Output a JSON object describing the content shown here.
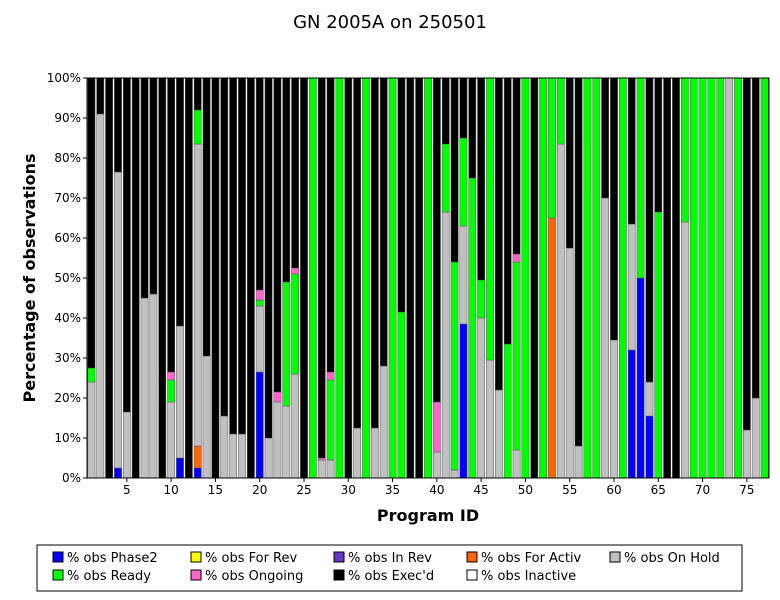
{
  "chart_data": {
    "type": "bar",
    "stacked": true,
    "title": "GN 2005A on 250501",
    "xlabel": "Program ID",
    "ylabel": "Percentage of observations",
    "ylim": [
      0,
      100
    ],
    "y_ticks": [
      "0%",
      "10%",
      "20%",
      "30%",
      "40%",
      "50%",
      "60%",
      "70%",
      "80%",
      "90%",
      "100%"
    ],
    "x_ticks": [
      "5",
      "10",
      "15",
      "20",
      "25",
      "30",
      "35",
      "40",
      "45",
      "50",
      "55",
      "60",
      "65",
      "70",
      "75"
    ],
    "legend_position": "bottom",
    "series_order": [
      "phase2",
      "for_rev",
      "in_rev",
      "for_activ",
      "on_hold",
      "ready",
      "ongoing",
      "execd",
      "inactive"
    ],
    "series_info": {
      "phase2": {
        "name": "% obs Phase2",
        "color": "#0000ff"
      },
      "for_rev": {
        "name": "% obs For Rev",
        "color": "#ffff00"
      },
      "in_rev": {
        "name": "% obs In Rev",
        "color": "#6633cc"
      },
      "for_activ": {
        "name": "% obs For Activ",
        "color": "#ff6600"
      },
      "on_hold": {
        "name": "% obs On Hold",
        "color": "#c0c0c0"
      },
      "ready": {
        "name": "% obs Ready",
        "color": "#00ff00"
      },
      "ongoing": {
        "name": "% obs Ongoing",
        "color": "#ff66cc"
      },
      "execd": {
        "name": "% obs Exec'd",
        "color": "#000000"
      },
      "inactive": {
        "name": "% obs Inactive",
        "color": "#ffffff"
      }
    },
    "programs": [
      {
        "id": 1,
        "on_hold": 24,
        "ready": 3.5
      },
      {
        "id": 2,
        "on_hold": 91
      },
      {
        "id": 3
      },
      {
        "id": 4,
        "phase2": 2.5,
        "on_hold": 74
      },
      {
        "id": 5,
        "on_hold": 16.5
      },
      {
        "id": 6
      },
      {
        "id": 7,
        "on_hold": 45
      },
      {
        "id": 8,
        "on_hold": 46
      },
      {
        "id": 9
      },
      {
        "id": 10,
        "on_hold": 19,
        "ready": 5.5,
        "ongoing": 2
      },
      {
        "id": 11,
        "phase2": 5,
        "on_hold": 33
      },
      {
        "id": 12
      },
      {
        "id": 13,
        "phase2": 2.5,
        "for_activ": 5.5,
        "on_hold": 75.5,
        "ready": 8.5
      },
      {
        "id": 14,
        "on_hold": 30.5
      },
      {
        "id": 15
      },
      {
        "id": 16,
        "on_hold": 15.5
      },
      {
        "id": 17,
        "on_hold": 11
      },
      {
        "id": 18,
        "on_hold": 11
      },
      {
        "id": 19
      },
      {
        "id": 20,
        "phase2": 26.5,
        "on_hold": 16.5,
        "ready": 1.5,
        "ongoing": 2.5
      },
      {
        "id": 21,
        "on_hold": 10
      },
      {
        "id": 22,
        "on_hold": 19,
        "ongoing": 2.5
      },
      {
        "id": 23,
        "on_hold": 18,
        "ready": 31
      },
      {
        "id": 24,
        "on_hold": 26,
        "ready": 25,
        "ongoing": 1.5
      },
      {
        "id": 25
      },
      {
        "id": 26,
        "ready": 100
      },
      {
        "id": 27,
        "on_hold": 4.5,
        "ongoing": 0.5
      },
      {
        "id": 28,
        "on_hold": 4.5,
        "ready": 20,
        "ongoing": 2
      },
      {
        "id": 29,
        "ready": 100
      },
      {
        "id": 30
      },
      {
        "id": 31,
        "on_hold": 12.5
      },
      {
        "id": 32,
        "ready": 100
      },
      {
        "id": 33,
        "on_hold": 12.5
      },
      {
        "id": 34,
        "on_hold": 28
      },
      {
        "id": 35,
        "ready": 100
      },
      {
        "id": 36,
        "ready": 41.5
      },
      {
        "id": 37
      },
      {
        "id": 38
      },
      {
        "id": 39,
        "ready": 100
      },
      {
        "id": 40,
        "on_hold": 6.5,
        "ongoing": 12.5
      },
      {
        "id": 41,
        "on_hold": 66.5,
        "ready": 17
      },
      {
        "id": 42,
        "on_hold": 2,
        "ready": 52
      },
      {
        "id": 43,
        "phase2": 38.5,
        "on_hold": 24.5,
        "ready": 22
      },
      {
        "id": 44,
        "ready": 75
      },
      {
        "id": 45,
        "on_hold": 40,
        "ready": 9.5
      },
      {
        "id": 46,
        "on_hold": 29.5,
        "ready": 70.5
      },
      {
        "id": 47,
        "on_hold": 22
      },
      {
        "id": 48,
        "ready": 33.5
      },
      {
        "id": 49,
        "on_hold": 7,
        "ready": 47,
        "ongoing": 2
      },
      {
        "id": 50,
        "ready": 100
      },
      {
        "id": 51
      },
      {
        "id": 52,
        "ready": 100
      },
      {
        "id": 53,
        "for_activ": 65,
        "ready": 35
      },
      {
        "id": 54,
        "on_hold": 83.5,
        "ready": 16.5
      },
      {
        "id": 55,
        "on_hold": 57.5
      },
      {
        "id": 56,
        "on_hold": 8
      },
      {
        "id": 57,
        "ready": 100
      },
      {
        "id": 58,
        "ready": 100
      },
      {
        "id": 59,
        "on_hold": 70
      },
      {
        "id": 60,
        "on_hold": 34.5
      },
      {
        "id": 61,
        "ready": 100
      },
      {
        "id": 62,
        "phase2": 32,
        "on_hold": 31.5
      },
      {
        "id": 63,
        "phase2": 50,
        "ready": 50
      },
      {
        "id": 64,
        "phase2": 15.5,
        "on_hold": 8.5
      },
      {
        "id": 65,
        "ready": 66.5
      },
      {
        "id": 66
      },
      {
        "id": 67
      },
      {
        "id": 68,
        "on_hold": 64,
        "ready": 36
      },
      {
        "id": 69,
        "ready": 100
      },
      {
        "id": 70,
        "ready": 100
      },
      {
        "id": 71,
        "ready": 100
      },
      {
        "id": 72,
        "ready": 100
      },
      {
        "id": 73,
        "on_hold": 100
      },
      {
        "id": 74,
        "ready": 100
      },
      {
        "id": 75,
        "on_hold": 12
      },
      {
        "id": 76,
        "on_hold": 20
      },
      {
        "id": 77,
        "ready": 100
      }
    ]
  }
}
